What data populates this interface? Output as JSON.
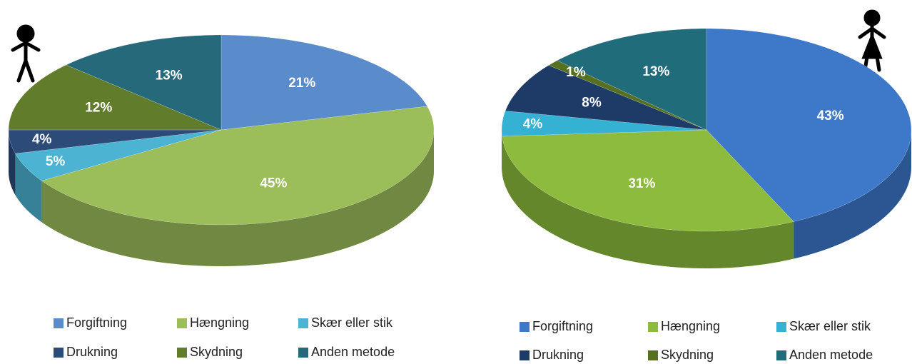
{
  "chart_data": [
    {
      "type": "pie",
      "categories": [
        "Forgiftning",
        "Hængning",
        "Skær eller stik",
        "Drukning",
        "Skydning",
        "Anden metode"
      ],
      "values": [
        21,
        45,
        5,
        4,
        12,
        13
      ],
      "value_labels": [
        "21%",
        "45%",
        "5%",
        "4%",
        "12%",
        "13%"
      ],
      "colors": [
        "#5a8bcb",
        "#9bbd5a",
        "#4cb3d2",
        "#2d4b78",
        "#617d2c",
        "#26697a"
      ]
    },
    {
      "type": "pie",
      "categories": [
        "Forgiftning",
        "Hængning",
        "Skær eller stik",
        "Drukning",
        "Skydning",
        "Anden metode"
      ],
      "values": [
        43,
        31,
        4,
        8,
        1,
        13
      ],
      "value_labels": [
        "43%",
        "31%",
        "4%",
        "8%",
        "1%",
        "13%"
      ],
      "colors": [
        "#3d78c9",
        "#8dbb3e",
        "#35b1d3",
        "#1e3b68",
        "#56701f",
        "#216c7b"
      ]
    }
  ]
}
